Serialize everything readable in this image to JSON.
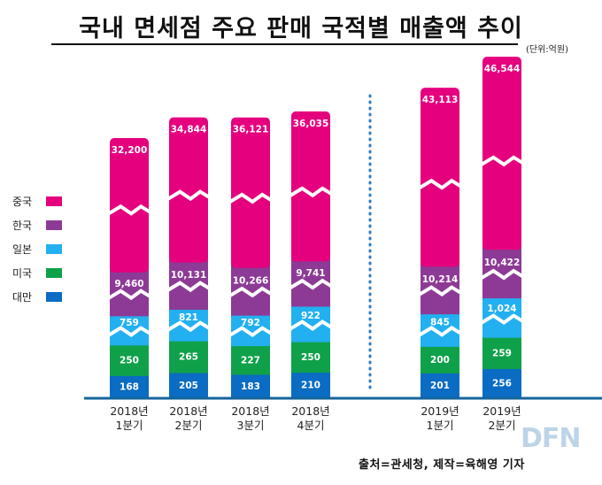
{
  "title": "국내 면세점 주요 판매 국적별 매출액 추이",
  "unit": "(단위:억원)",
  "source": "출처=관세청,   제작=육해영 기자",
  "logo": "DFN",
  "colors": {
    "중국": "#e5007e",
    "한국": "#8d3a96",
    "일본": "#22b0f0",
    "미국": "#0fa14a",
    "대만": "#0a6cc2"
  },
  "chart_data": {
    "type": "bar",
    "stacked": true,
    "axis_breaks": true,
    "categories": [
      "2018년\n1분기",
      "2018년\n2분기",
      "2018년\n3분기",
      "2018년\n4분기",
      "2019년\n1분기",
      "2019년\n2분기"
    ],
    "series": [
      {
        "name": "대만",
        "values": [
          168,
          205,
          183,
          210,
          201,
          256
        ]
      },
      {
        "name": "미국",
        "values": [
          250,
          265,
          227,
          250,
          200,
          259
        ]
      },
      {
        "name": "일본",
        "values": [
          759,
          821,
          792,
          922,
          845,
          1024
        ]
      },
      {
        "name": "한국",
        "values": [
          9460,
          10131,
          10266,
          9741,
          10214,
          10422
        ]
      },
      {
        "name": "중국",
        "values": [
          32200,
          34844,
          36121,
          36035,
          43113,
          46544
        ]
      }
    ],
    "legend": [
      "중국",
      "한국",
      "일본",
      "미국",
      "대만"
    ],
    "legend_position": "left",
    "divider_between": [
      3,
      4
    ]
  }
}
